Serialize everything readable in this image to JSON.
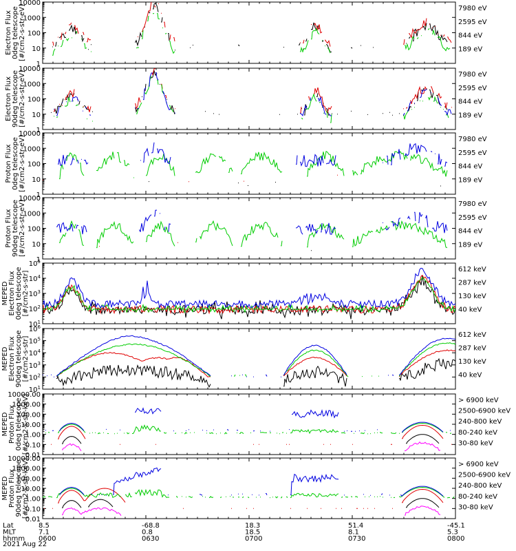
{
  "date_label": "2021 Aug 22",
  "footer": {
    "rows": [
      {
        "label": "Lat",
        "values": [
          "8.5",
          "-68.8",
          "18.3",
          "51.4",
          "-45.1"
        ]
      },
      {
        "label": "MLT",
        "values": [
          "7.1",
          "0.8",
          "18.5",
          "8.1",
          "5.3"
        ]
      },
      {
        "label": "hhmm",
        "values": [
          "0600",
          "0630",
          "0700",
          "0730",
          "0800"
        ]
      }
    ]
  },
  "colors": {
    "black": "#000000",
    "red": "#e00000",
    "green": "#00cc00",
    "blue": "#0000e0",
    "magenta": "#ff00ff"
  },
  "chart_data": [
    {
      "type": "line",
      "id": "p1",
      "ylabel": [
        "Electron Flux",
        "0deg telescope",
        "[#/cm2-s-str-eV]"
      ],
      "yscale": "log",
      "ylim": [
        1,
        10000
      ],
      "yticks": [
        "1",
        "10",
        "100",
        "1000",
        "10000"
      ],
      "series": [
        {
          "name": "7980 eV",
          "color": "#000000"
        },
        {
          "name": "2595 eV",
          "color": "#e00000"
        },
        {
          "name": "844 eV",
          "color": "#00cc00"
        },
        {
          "name": "189 eV",
          "color": "#0000e0"
        }
      ]
    },
    {
      "type": "line",
      "id": "p2",
      "ylabel": [
        "Electron Flux",
        "90deg telescope",
        "[#/cm2-s-str-eV]"
      ],
      "yscale": "log",
      "ylim": [
        1,
        10000
      ],
      "yticks": [
        "1",
        "10",
        "100",
        "1000",
        "10000"
      ],
      "series": [
        {
          "name": "7980 eV",
          "color": "#000000"
        },
        {
          "name": "2595 eV",
          "color": "#e00000"
        },
        {
          "name": "844 eV",
          "color": "#00cc00"
        },
        {
          "name": "189 eV",
          "color": "#0000e0"
        }
      ]
    },
    {
      "type": "line",
      "id": "p3",
      "ylabel": [
        "Proton Flux",
        "0deg telescope",
        "[#/cm2-s-str-eV]"
      ],
      "yscale": "log",
      "ylim": [
        1,
        10000
      ],
      "yticks": [
        "1",
        "10",
        "100",
        "1000",
        "10000"
      ],
      "series": [
        {
          "name": "7980 eV",
          "color": "#000000"
        },
        {
          "name": "2595 eV",
          "color": "#e00000"
        },
        {
          "name": "844 eV",
          "color": "#00cc00"
        },
        {
          "name": "189 eV",
          "color": "#0000e0"
        }
      ]
    },
    {
      "type": "line",
      "id": "p4",
      "ylabel": [
        "Proton Flux",
        "90deg telescope",
        "[#/cm2-s-str-eV]"
      ],
      "yscale": "log",
      "ylim": [
        1,
        10000
      ],
      "yticks": [
        "1",
        "10",
        "100",
        "1000",
        "10000"
      ],
      "series": [
        {
          "name": "7980 eV",
          "color": "#000000"
        },
        {
          "name": "2595 eV",
          "color": "#e00000"
        },
        {
          "name": "844 eV",
          "color": "#00cc00"
        },
        {
          "name": "189 eV",
          "color": "#0000e0"
        }
      ]
    },
    {
      "type": "line",
      "id": "p5",
      "ylabel": [
        "MEPED",
        "Electron Flux",
        "0deg telescope",
        "[#/cm2-s-str]"
      ],
      "yscale": "log",
      "ylim": [
        10,
        100000
      ],
      "yticks": [
        "10^1",
        "10^2",
        "10^3",
        "10^4",
        "10^5"
      ],
      "series": [
        {
          "name": "612 keV",
          "color": "#000000"
        },
        {
          "name": "287 keV",
          "color": "#e00000"
        },
        {
          "name": "130 keV",
          "color": "#00cc00"
        },
        {
          "name": "40 keV",
          "color": "#0000e0"
        }
      ]
    },
    {
      "type": "line",
      "id": "p6",
      "ylabel": [
        "MEPED",
        "Electron Flux",
        "90deg telescope",
        "[#/cm2-s-str]"
      ],
      "yscale": "log",
      "ylim": [
        10,
        1000000
      ],
      "yticks": [
        "10^1",
        "10^2",
        "10^3",
        "10^4",
        "10^5",
        "10^6"
      ],
      "series": [
        {
          "name": "612 keV",
          "color": "#000000"
        },
        {
          "name": "287 keV",
          "color": "#e00000"
        },
        {
          "name": "130 keV",
          "color": "#00cc00"
        },
        {
          "name": "40 keV",
          "color": "#0000e0"
        }
      ]
    },
    {
      "type": "line",
      "id": "p7",
      "ylabel": [
        "MEPED",
        "Proton Flux",
        "0deg telescope",
        "[#/cm2-s-str-keV]"
      ],
      "yscale": "log",
      "ylim": [
        0.01,
        10000
      ],
      "yticks": [
        "0.01",
        "0.10",
        "1.00",
        "10.00",
        "100.00",
        "1000.00",
        "10000.00"
      ],
      "series": [
        {
          "name": "> 6900 keV",
          "color": "#ff00ff"
        },
        {
          "name": "2500-6900 keV",
          "color": "#000000"
        },
        {
          "name": "240-800 keV",
          "color": "#e00000"
        },
        {
          "name": "80-240 keV",
          "color": "#00cc00"
        },
        {
          "name": "30-80 keV",
          "color": "#0000e0"
        }
      ]
    },
    {
      "type": "line",
      "id": "p8",
      "ylabel": [
        "MEPED",
        "Proton Flux",
        "90deg telescope",
        "[#/cm2-s-str-keV]"
      ],
      "yscale": "log",
      "ylim": [
        0.01,
        10000
      ],
      "yticks": [
        "0.01",
        "0.10",
        "1.00",
        "10.00",
        "100.00",
        "1000.00",
        "10000.00"
      ],
      "series": [
        {
          "name": "> 6900 keV",
          "color": "#ff00ff"
        },
        {
          "name": "2500-6900 keV",
          "color": "#000000"
        },
        {
          "name": "240-800 keV",
          "color": "#e00000"
        },
        {
          "name": "80-240 keV",
          "color": "#00cc00"
        },
        {
          "name": "30-80 keV",
          "color": "#0000e0"
        }
      ]
    }
  ]
}
